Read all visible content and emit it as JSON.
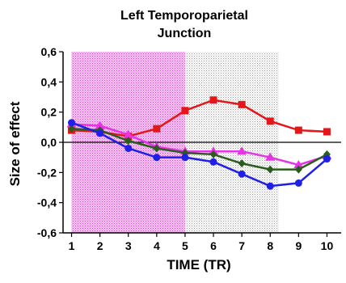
{
  "chart_data": {
    "type": "line",
    "title_lines": [
      "Left Temporoparietal",
      "Junction"
    ],
    "xlabel": "TIME (TR)",
    "ylabel": "Size of effect",
    "x": [
      1,
      2,
      3,
      4,
      5,
      6,
      7,
      8,
      9,
      10
    ],
    "x_ticks": [
      "1",
      "2",
      "3",
      "4",
      "5",
      "6",
      "7",
      "8",
      "9",
      "10"
    ],
    "y_ticks": [
      "0,6",
      "0,4",
      "0,2",
      "0,0",
      "-0,2",
      "-0,4",
      "-0,6"
    ],
    "y_tick_values": [
      0.6,
      0.4,
      0.2,
      0.0,
      -0.2,
      -0.4,
      -0.6
    ],
    "xlim": [
      0.7,
      10.5
    ],
    "ylim": [
      -0.6,
      0.6
    ],
    "shaded_regions": [
      {
        "x_range": [
          1,
          5
        ],
        "color": "#e58ce0"
      },
      {
        "x_range": [
          5,
          8.3
        ],
        "color": "#d8d8d8"
      }
    ],
    "series": [
      {
        "color": "#e5161a",
        "marker": "square",
        "values": [
          0.08,
          0.07,
          0.04,
          0.09,
          0.21,
          0.28,
          0.25,
          0.14,
          0.08,
          0.07
        ]
      },
      {
        "color": "#e633e6",
        "marker": "triangle",
        "values": [
          0.12,
          0.11,
          0.05,
          -0.03,
          -0.06,
          -0.06,
          -0.06,
          -0.1,
          -0.15,
          -0.09
        ]
      },
      {
        "color": "#2a5c1e",
        "marker": "diamond",
        "values": [
          0.09,
          0.08,
          0.01,
          -0.04,
          -0.07,
          -0.08,
          -0.14,
          -0.18,
          -0.18,
          -0.08
        ]
      },
      {
        "color": "#1f1fe5",
        "marker": "circle",
        "values": [
          0.13,
          0.06,
          -0.04,
          -0.1,
          -0.1,
          -0.13,
          -0.21,
          -0.29,
          -0.27,
          -0.11
        ]
      }
    ]
  }
}
